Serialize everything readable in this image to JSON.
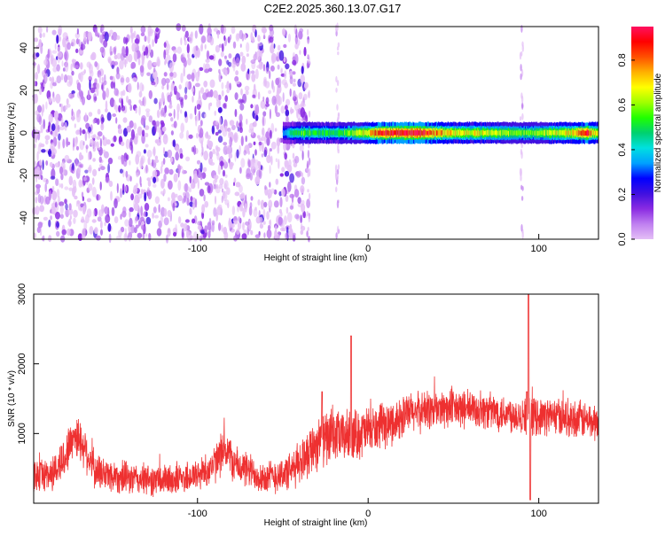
{
  "figure": {
    "title": "C2E2.2025.360.13.07.G17"
  },
  "chart_data": [
    {
      "type": "heatmap",
      "xlabel": "Height of straight line (km)",
      "ylabel": "Frequency (Hz)",
      "xlim": [
        -196,
        135
      ],
      "ylim": [
        -50,
        50
      ],
      "x_ticks": [
        -100,
        0,
        100
      ],
      "y_ticks": [
        -40,
        -20,
        0,
        20,
        40
      ],
      "colorbar": {
        "label": "Normalized spectral amplitude",
        "range": [
          0,
          0.95
        ],
        "ticks": [
          0.0,
          0.2,
          0.4,
          0.6,
          0.8
        ],
        "colormap": [
          "#e4bff6",
          "#c080f0",
          "#8a2be2",
          "#4010e0",
          "#0000ff",
          "#00a0ff",
          "#00e0e0",
          "#00d070",
          "#20ff00",
          "#a0ff00",
          "#ffff00",
          "#ffb000",
          "#ff5000",
          "#ff0000",
          "#ff1060"
        ]
      },
      "features": {
        "noise_region_x": [
          -196,
          -35
        ],
        "noise_amplitude": 0.15,
        "tone_frequency_hz": 0,
        "tone_region_x": [
          -50,
          135
        ],
        "tone_profile": [
          {
            "x": -50,
            "amp": 0.3
          },
          {
            "x": -45,
            "amp": 0.5
          },
          {
            "x": -35,
            "amp": 0.55
          },
          {
            "x": -20,
            "amp": 0.5
          },
          {
            "x": -10,
            "amp": 0.6
          },
          {
            "x": 0,
            "amp": 0.7
          },
          {
            "x": 10,
            "amp": 0.9
          },
          {
            "x": 20,
            "amp": 0.95
          },
          {
            "x": 30,
            "amp": 0.92
          },
          {
            "x": 40,
            "amp": 0.8
          },
          {
            "x": 50,
            "amp": 0.7
          },
          {
            "x": 60,
            "amp": 0.68
          },
          {
            "x": 70,
            "amp": 0.66
          },
          {
            "x": 80,
            "amp": 0.62
          },
          {
            "x": 90,
            "amp": 0.55
          },
          {
            "x": 100,
            "amp": 0.6
          },
          {
            "x": 110,
            "amp": 0.65
          },
          {
            "x": 120,
            "amp": 0.7
          },
          {
            "x": 128,
            "amp": 0.9
          },
          {
            "x": 135,
            "amp": 0.6
          }
        ],
        "vertical_streaks_x": [
          -35,
          -18,
          90
        ]
      }
    },
    {
      "type": "line",
      "xlabel": "Height of straight line (km)",
      "ylabel": "SNR (10 * v/v)",
      "xlim": [
        -196,
        135
      ],
      "ylim": [
        0,
        3000
      ],
      "x_ticks": [
        -100,
        0,
        100
      ],
      "y_ticks": [
        1000,
        2000,
        3000
      ],
      "color": "#ee3030",
      "series": [
        {
          "envelope": [
            {
              "x": -196,
              "mean": 400,
              "spread": 220
            },
            {
              "x": -185,
              "mean": 420,
              "spread": 240
            },
            {
              "x": -178,
              "mean": 650,
              "spread": 300
            },
            {
              "x": -172,
              "mean": 1000,
              "spread": 300
            },
            {
              "x": -166,
              "mean": 800,
              "spread": 300
            },
            {
              "x": -160,
              "mean": 450,
              "spread": 250
            },
            {
              "x": -140,
              "mean": 350,
              "spread": 220
            },
            {
              "x": -120,
              "mean": 320,
              "spread": 220
            },
            {
              "x": -100,
              "mean": 400,
              "spread": 220
            },
            {
              "x": -90,
              "mean": 550,
              "spread": 260
            },
            {
              "x": -84,
              "mean": 800,
              "spread": 300
            },
            {
              "x": -78,
              "mean": 550,
              "spread": 260
            },
            {
              "x": -60,
              "mean": 360,
              "spread": 230
            },
            {
              "x": -45,
              "mean": 450,
              "spread": 260
            },
            {
              "x": -35,
              "mean": 750,
              "spread": 350
            },
            {
              "x": -28,
              "mean": 900,
              "spread": 380
            },
            {
              "x": -18,
              "mean": 950,
              "spread": 350
            },
            {
              "x": -5,
              "mean": 1000,
              "spread": 350
            },
            {
              "x": 10,
              "mean": 1100,
              "spread": 300
            },
            {
              "x": 25,
              "mean": 1300,
              "spread": 280
            },
            {
              "x": 40,
              "mean": 1350,
              "spread": 280
            },
            {
              "x": 60,
              "mean": 1350,
              "spread": 260
            },
            {
              "x": 80,
              "mean": 1300,
              "spread": 260
            },
            {
              "x": 95,
              "mean": 1250,
              "spread": 260
            },
            {
              "x": 110,
              "mean": 1250,
              "spread": 260
            },
            {
              "x": 125,
              "mean": 1200,
              "spread": 260
            },
            {
              "x": 135,
              "mean": 1150,
              "spread": 260
            }
          ],
          "spikes": [
            {
              "x": -10,
              "value": 2400
            },
            {
              "x": -27,
              "value": 1600
            },
            {
              "x": 93,
              "value": 1600
            },
            {
              "x": 94,
              "value": 3000
            },
            {
              "x": 95,
              "value": 50
            }
          ]
        }
      ]
    }
  ]
}
